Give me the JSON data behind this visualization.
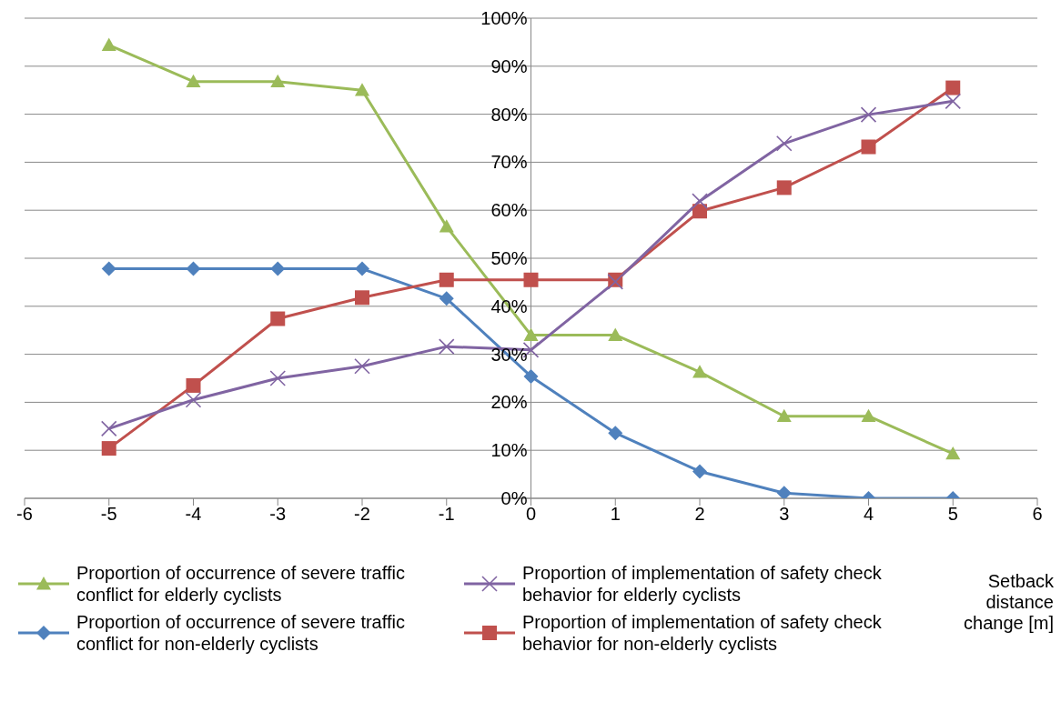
{
  "chart_data": {
    "type": "line",
    "x": [
      -5,
      -4,
      -3,
      -2,
      -1,
      0,
      1,
      2,
      3,
      4,
      5
    ],
    "series": [
      {
        "name": "Proportion of occurrence of severe traffic conflict for elderly cyclists",
        "color": "#9bbb59",
        "marker": "triangle",
        "values": [
          94.4,
          86.8,
          86.8,
          85.0,
          56.6,
          34.0,
          34.0,
          26.3,
          17.1,
          17.1,
          9.3
        ]
      },
      {
        "name": "Proportion of occurrence of severe traffic conflict for non-elderly cyclists",
        "color": "#4f81bd",
        "marker": "diamond",
        "values": [
          47.8,
          47.8,
          47.8,
          47.8,
          41.6,
          25.4,
          13.6,
          5.6,
          1.1,
          0,
          0
        ]
      },
      {
        "name": "Proportion of implementation of safety check behavior for elderly cyclists",
        "color": "#8064a2",
        "marker": "cross",
        "values": [
          14.5,
          20.5,
          25.0,
          27.5,
          31.6,
          30.9,
          45.1,
          61.9,
          73.9,
          79.9,
          82.7
        ]
      },
      {
        "name": "Proportion of implementation of safety check behavior for non-elderly cyclists",
        "color": "#c0504d",
        "marker": "square",
        "values": [
          10.4,
          23.5,
          37.4,
          41.8,
          45.5,
          45.5,
          45.5,
          59.8,
          64.7,
          73.2,
          85.5
        ]
      }
    ],
    "xlabel": "Setback distance change [m]",
    "xlim": [
      -6,
      6
    ],
    "xticks": [
      -6,
      -5,
      -4,
      -3,
      -2,
      -1,
      0,
      1,
      2,
      3,
      4,
      5,
      6
    ],
    "ylim": [
      0,
      100
    ],
    "yticks": [
      {
        "value": 0,
        "label": "0%"
      },
      {
        "value": 10,
        "label": "10%"
      },
      {
        "value": 20,
        "label": "20%"
      },
      {
        "value": 30,
        "label": "30%"
      },
      {
        "value": 40,
        "label": "40%"
      },
      {
        "value": 50,
        "label": "50%"
      },
      {
        "value": 60,
        "label": "60%"
      },
      {
        "value": 70,
        "label": "70%"
      },
      {
        "value": 80,
        "label": "80%"
      },
      {
        "value": 90,
        "label": "90%"
      },
      {
        "value": 100,
        "label": "100%"
      }
    ],
    "grid": "y",
    "legend": "bottom",
    "line_style": "solid"
  }
}
